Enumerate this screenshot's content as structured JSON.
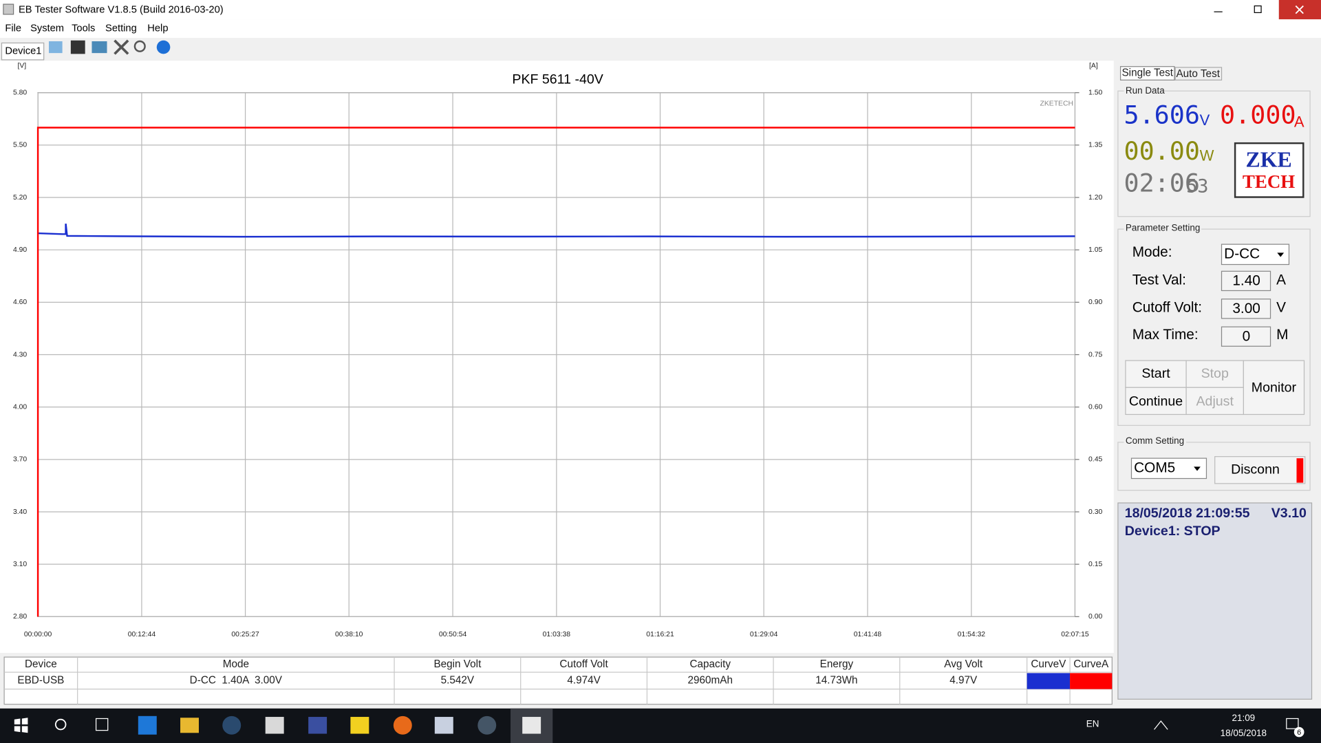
{
  "window": {
    "title": "EB Tester Software V1.8.5 (Build 2016-03-20)"
  },
  "menu": [
    "File",
    "System",
    "Tools",
    "Setting",
    "Help"
  ],
  "device_tab": "Device1",
  "chart_data": {
    "type": "line",
    "title": "PKF 5611 -40V",
    "y_unit": "[V]",
    "y2_unit": "[A]",
    "watermark": "ZKETECH",
    "grid": true,
    "xlim": [
      0,
      7635
    ],
    "xticks": [
      {
        "value": 0,
        "label": "00:00:00"
      },
      {
        "value": 764,
        "label": "00:12:44"
      },
      {
        "value": 1527,
        "label": "00:25:27"
      },
      {
        "value": 2290,
        "label": "00:38:10"
      },
      {
        "value": 3054,
        "label": "00:50:54"
      },
      {
        "value": 3818,
        "label": "01:03:38"
      },
      {
        "value": 4581,
        "label": "01:16:21"
      },
      {
        "value": 5344,
        "label": "01:29:04"
      },
      {
        "value": 6108,
        "label": "01:41:48"
      },
      {
        "value": 6872,
        "label": "01:54:32"
      },
      {
        "value": 7635,
        "label": "02:07:15"
      }
    ],
    "ylim": [
      2.8,
      5.8
    ],
    "yticks": [
      {
        "value": 2.8,
        "label": "2.80"
      },
      {
        "value": 3.1,
        "label": "3.10"
      },
      {
        "value": 3.4,
        "label": "3.40"
      },
      {
        "value": 3.7,
        "label": "3.70"
      },
      {
        "value": 4.0,
        "label": "4.00"
      },
      {
        "value": 4.3,
        "label": "4.30"
      },
      {
        "value": 4.6,
        "label": "4.60"
      },
      {
        "value": 4.9,
        "label": "4.90"
      },
      {
        "value": 5.2,
        "label": "5.20"
      },
      {
        "value": 5.5,
        "label": "5.50"
      },
      {
        "value": 5.8,
        "label": "5.80"
      }
    ],
    "y2lim": [
      0,
      1.5
    ],
    "y2ticks": [
      {
        "value": 0,
        "label": "0.00"
      },
      {
        "value": 0.15,
        "label": "0.15"
      },
      {
        "value": 0.3,
        "label": "0.30"
      },
      {
        "value": 0.45,
        "label": "0.45"
      },
      {
        "value": 0.6,
        "label": "0.60"
      },
      {
        "value": 0.75,
        "label": "0.75"
      },
      {
        "value": 0.9,
        "label": "0.90"
      },
      {
        "value": 1.05,
        "label": "1.05"
      },
      {
        "value": 1.2,
        "label": "1.20"
      },
      {
        "value": 1.35,
        "label": "1.35"
      },
      {
        "value": 1.5,
        "label": "1.50"
      }
    ],
    "series": [
      {
        "name": "CurveV",
        "color": "#1a2fd0",
        "x": [
          0,
          180,
          205,
          205,
          215,
          600,
          1500,
          2500,
          3500,
          4500,
          5500,
          6500,
          7635
        ],
        "values": [
          4.995,
          4.99,
          4.99,
          5.05,
          4.98,
          4.978,
          4.975,
          4.977,
          4.976,
          4.977,
          4.975,
          4.976,
          4.978
        ]
      },
      {
        "name": "CurveA",
        "color": "#ff0000",
        "axis": "y2",
        "x": [
          0,
          0,
          7635
        ],
        "values": [
          0,
          1.4,
          1.4
        ]
      }
    ]
  },
  "tabs": [
    "Single Test",
    "Auto Test"
  ],
  "run_data": {
    "label": "Run Data",
    "voltage": "5.606",
    "voltage_unit": "V",
    "current": "0.000",
    "current_unit": "A",
    "power": "00.00",
    "power_unit": "W",
    "time": "02:06",
    "time_seconds": "53",
    "logo": [
      "ZKE",
      "TECH"
    ]
  },
  "parameter_setting": {
    "label": "Parameter Setting",
    "rows": [
      {
        "label": "Mode:",
        "value": "D-CC"
      },
      {
        "label": "Test Val:",
        "value": "1.40",
        "unit": "A"
      },
      {
        "label": "Cutoff Volt:",
        "value": "3.00",
        "unit": "V"
      },
      {
        "label": "Max Time:",
        "value": "0",
        "unit": "M"
      }
    ]
  },
  "buttons": [
    "Start",
    "Stop",
    "Monitor",
    "Continue",
    "Adjust"
  ],
  "comm_setting": {
    "label": "Comm Setting",
    "port": "COM5",
    "button": "Disconn"
  },
  "status": [
    "18/05/2018 21:09:55",
    "V3.10",
    "Device1: STOP"
  ],
  "table": {
    "headers": [
      "Device",
      "Mode",
      "Begin Volt",
      "Cutoff Volt",
      "Capacity",
      "Energy",
      "Avg Volt"
    ],
    "rows": [
      [
        "EBD-USB",
        "D-CC  1.40A  3.00V",
        "5.542V",
        "4.974V",
        "2960mAh",
        "14.73Wh",
        "4.97V"
      ]
    ]
  },
  "taskbar": {
    "language": "EN",
    "time": "21:09",
    "date": "18/05/2018",
    "notifications": "6"
  }
}
